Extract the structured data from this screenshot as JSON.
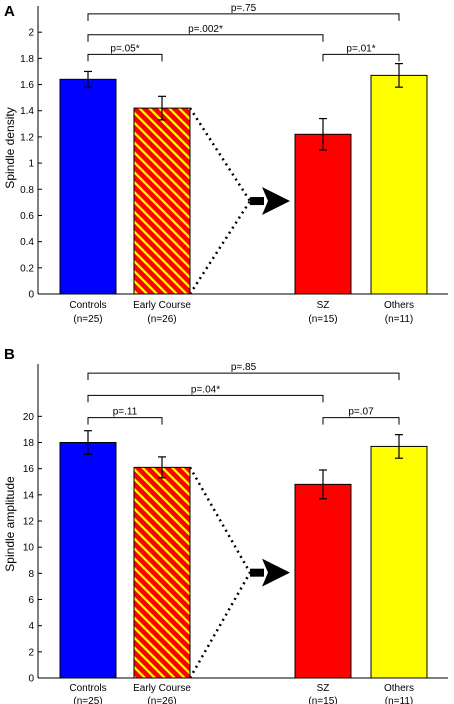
{
  "chart_data": [
    {
      "panel": "A",
      "type": "bar",
      "ylabel": "Spindle density",
      "ylim": [
        0,
        2.2
      ],
      "yticks": [
        0,
        0.2,
        0.4,
        0.6,
        0.8,
        1,
        1.2,
        1.4,
        1.6,
        1.8,
        2
      ],
      "ytick_labels": [
        "0",
        "0.2",
        "0.4",
        "0.6",
        "0.8",
        "1",
        "1.2",
        "1.4",
        "1.6",
        "1.8",
        "2"
      ],
      "categories": [
        {
          "label": "Controls",
          "n": "(n=25)",
          "value": 1.64,
          "err": 0.06,
          "fill": "#0000ff",
          "pattern": "solid"
        },
        {
          "label": "Early Course",
          "n": "(n=26)",
          "value": 1.42,
          "err": 0.09,
          "fill": "#ff0000",
          "pattern": "hatch-yellow"
        },
        {
          "label": "SZ",
          "n": "(n=15)",
          "value": 1.22,
          "err": 0.12,
          "fill": "#ff0000",
          "pattern": "solid"
        },
        {
          "label": "Others",
          "n": "(n=11)",
          "value": 1.67,
          "err": 0.09,
          "fill": "#ffff00",
          "pattern": "solid"
        }
      ],
      "brackets": [
        {
          "from": 0,
          "to": 3,
          "label": "p=.75",
          "level": 2.14
        },
        {
          "from": 0,
          "to": 2,
          "label": "p=.002*",
          "level": 1.98
        },
        {
          "from": 0,
          "to": 1,
          "label": "p=.05*",
          "level": 1.83
        },
        {
          "from": 2,
          "to": 3,
          "label": "p=.01*",
          "level": 1.83
        }
      ],
      "split_arrow": {
        "from": 1,
        "to": 2
      }
    },
    {
      "panel": "B",
      "type": "bar",
      "ylabel": "Spindle amplitude",
      "ylim": [
        0,
        24
      ],
      "yticks": [
        0,
        2,
        4,
        6,
        8,
        10,
        12,
        14,
        16,
        18,
        20
      ],
      "ytick_labels": [
        "0",
        "2",
        "4",
        "6",
        "8",
        "10",
        "12",
        "14",
        "16",
        "18",
        "20"
      ],
      "categories": [
        {
          "label": "Controls",
          "n": "(n=25)",
          "value": 18.0,
          "err": 0.9,
          "fill": "#0000ff",
          "pattern": "solid"
        },
        {
          "label": "Early Course",
          "n": "(n=26)",
          "value": 16.1,
          "err": 0.8,
          "fill": "#ff0000",
          "pattern": "hatch-yellow"
        },
        {
          "label": "SZ",
          "n": "(n=15)",
          "value": 14.8,
          "err": 1.1,
          "fill": "#ff0000",
          "pattern": "solid"
        },
        {
          "label": "Others",
          "n": "(n=11)",
          "value": 17.7,
          "err": 0.9,
          "fill": "#ffff00",
          "pattern": "solid"
        }
      ],
      "brackets": [
        {
          "from": 0,
          "to": 3,
          "label": "p=.85",
          "level": 23.3
        },
        {
          "from": 0,
          "to": 2,
          "label": "p=.04*",
          "level": 21.6
        },
        {
          "from": 0,
          "to": 1,
          "label": "p=.11",
          "level": 19.9
        },
        {
          "from": 2,
          "to": 3,
          "label": "p=.07",
          "level": 19.9
        }
      ],
      "split_arrow": {
        "from": 1,
        "to": 2
      }
    }
  ]
}
